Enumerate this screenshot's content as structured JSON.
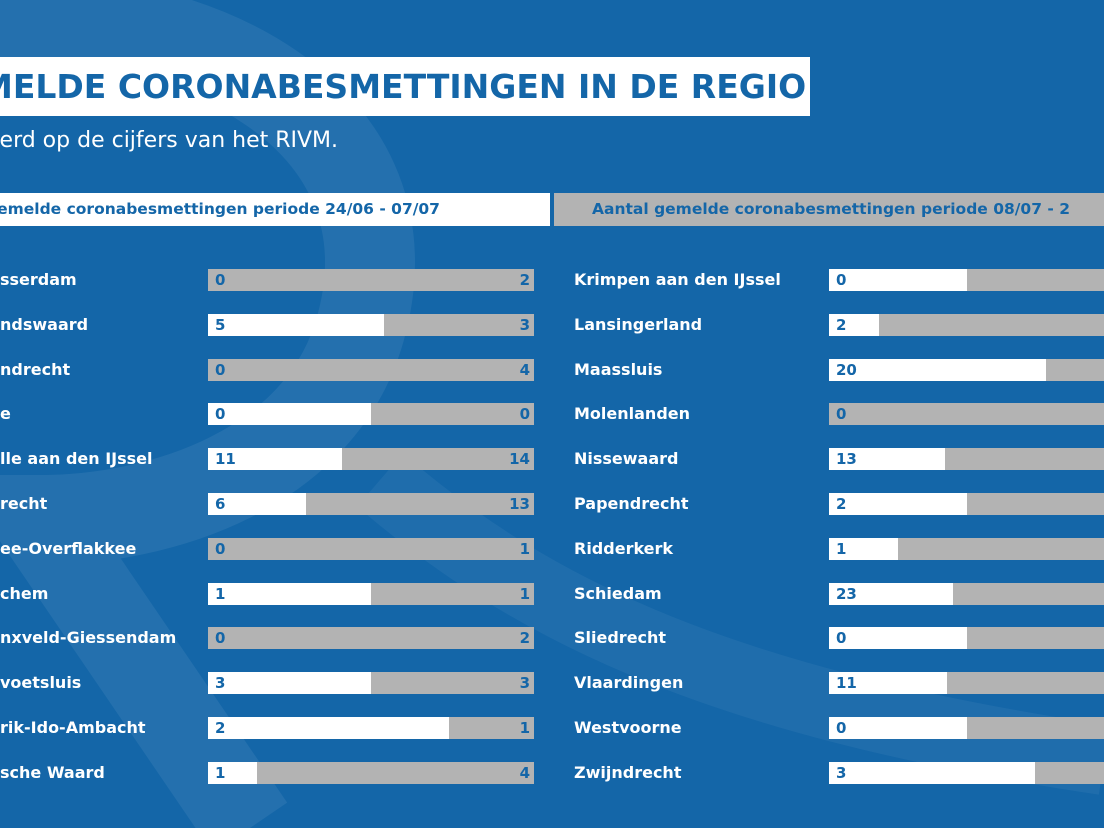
{
  "title": "MELDE CORONABESMETTINGEN IN DE REGIO",
  "subtitle": "eerd op de cijfers van het RIVM.",
  "colors": {
    "background": "#1466a8",
    "period1_bar": "#ffffff",
    "period2_bar": "#b3b3b3"
  },
  "chart_data": {
    "type": "bar",
    "series": [
      {
        "name": "gemelde coronabesmettingen periode 24/06 -  07/07"
      },
      {
        "name": "Aantal gemelde coronabesmettingen periode 08/07 - 2"
      }
    ],
    "left_column": [
      {
        "name": "sserdam",
        "p1": 0,
        "p2": 2,
        "share": 0.0
      },
      {
        "name": "ndswaard",
        "p1": 5,
        "p2": 3,
        "share": 0.54
      },
      {
        "name": "ndrecht",
        "p1": 0,
        "p2": 4,
        "share": 0.0
      },
      {
        "name": "e",
        "p1": 0,
        "p2": 0,
        "share": 0.5
      },
      {
        "name": "lle aan den IJssel",
        "p1": 11,
        "p2": 14,
        "share": 0.41
      },
      {
        "name": "recht",
        "p1": 6,
        "p2": 13,
        "share": 0.3
      },
      {
        "name": "ee-Overflakkee",
        "p1": 0,
        "p2": 1,
        "share": 0.0
      },
      {
        "name": "chem",
        "p1": 1,
        "p2": 1,
        "share": 0.5
      },
      {
        "name": "nxveld-Giessendam",
        "p1": 0,
        "p2": 2,
        "share": 0.0
      },
      {
        "name": "voetsluis",
        "p1": 3,
        "p2": 3,
        "share": 0.5
      },
      {
        "name": "rik-Ido-Ambacht",
        "p1": 2,
        "p2": 1,
        "share": 0.74
      },
      {
        "name": "sche Waard",
        "p1": 1,
        "p2": 4,
        "share": 0.15
      }
    ],
    "right_column": [
      {
        "name": "Krimpen aan den IJssel",
        "p1": 0,
        "share": 0.5
      },
      {
        "name": "Lansingerland",
        "p1": 2,
        "share": 0.18
      },
      {
        "name": "Maassluis",
        "p1": 20,
        "share": 0.79
      },
      {
        "name": "Molenlanden",
        "p1": 0,
        "share": 0.0
      },
      {
        "name": "Nissewaard",
        "p1": 13,
        "share": 0.42
      },
      {
        "name": "Papendrecht",
        "p1": 2,
        "share": 0.5
      },
      {
        "name": "Ridderkerk",
        "p1": 1,
        "share": 0.25
      },
      {
        "name": "Schiedam",
        "p1": 23,
        "share": 0.45
      },
      {
        "name": "Sliedrecht",
        "p1": 0,
        "share": 0.5
      },
      {
        "name": "Vlaardingen",
        "p1": 11,
        "share": 0.43
      },
      {
        "name": "Westvoorne",
        "p1": 0,
        "share": 0.5
      },
      {
        "name": "Zwijndrecht",
        "p1": 3,
        "share": 0.75
      }
    ]
  }
}
